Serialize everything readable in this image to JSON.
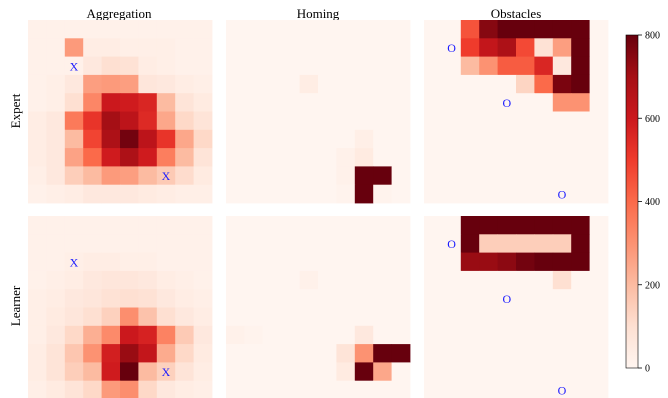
{
  "chart_data": {
    "type": "heatmap",
    "grid_size": 10,
    "columns": [
      "Aggregation",
      "Homing",
      "Obstacles"
    ],
    "rows": [
      "Expert",
      "Learner"
    ],
    "colorbar": {
      "min": 0,
      "max": 800,
      "ticks": [
        0,
        200,
        400,
        600,
        800
      ],
      "colormap": "Reds"
    },
    "marker_color": "#1a1aff",
    "panels": [
      {
        "row": "Expert",
        "column": "Aggregation",
        "values": [
          [
            20,
            20,
            20,
            20,
            20,
            20,
            20,
            20,
            20,
            20
          ],
          [
            20,
            20,
            280,
            40,
            40,
            30,
            30,
            30,
            20,
            20
          ],
          [
            20,
            20,
            20,
            60,
            100,
            90,
            40,
            30,
            20,
            20
          ],
          [
            20,
            30,
            60,
            270,
            280,
            270,
            70,
            60,
            40,
            30
          ],
          [
            20,
            30,
            100,
            330,
            600,
            590,
            560,
            200,
            80,
            50
          ],
          [
            40,
            60,
            360,
            520,
            700,
            640,
            550,
            250,
            120,
            80
          ],
          [
            40,
            60,
            200,
            480,
            680,
            780,
            640,
            520,
            250,
            120
          ],
          [
            40,
            60,
            260,
            400,
            590,
            680,
            590,
            350,
            200,
            80
          ],
          [
            30,
            60,
            150,
            200,
            280,
            270,
            200,
            160,
            110,
            50
          ],
          [
            20,
            30,
            40,
            60,
            60,
            60,
            50,
            40,
            30,
            30
          ]
        ],
        "markers": [
          {
            "label": "X",
            "col": 2,
            "row": 2
          },
          {
            "label": "X",
            "col": 7,
            "row": 8
          }
        ]
      },
      {
        "row": "Expert",
        "column": "Homing",
        "values": [
          [
            0,
            0,
            0,
            0,
            0,
            0,
            0,
            0,
            0,
            0
          ],
          [
            0,
            0,
            0,
            0,
            0,
            0,
            0,
            0,
            0,
            0
          ],
          [
            0,
            0,
            0,
            0,
            0,
            0,
            0,
            0,
            0,
            0
          ],
          [
            0,
            0,
            0,
            0,
            40,
            0,
            0,
            0,
            0,
            0
          ],
          [
            0,
            0,
            0,
            0,
            0,
            0,
            0,
            0,
            0,
            0
          ],
          [
            0,
            0,
            0,
            0,
            0,
            0,
            0,
            0,
            0,
            0
          ],
          [
            0,
            0,
            0,
            0,
            0,
            0,
            0,
            30,
            0,
            0
          ],
          [
            0,
            0,
            0,
            0,
            0,
            0,
            20,
            50,
            0,
            0
          ],
          [
            0,
            0,
            0,
            0,
            0,
            0,
            20,
            850,
            850,
            0
          ],
          [
            0,
            0,
            0,
            0,
            0,
            0,
            10,
            850,
            10,
            0
          ]
        ],
        "markers": []
      },
      {
        "row": "Expert",
        "column": "Obstacles",
        "values": [
          [
            0,
            0,
            450,
            750,
            850,
            850,
            850,
            850,
            850,
            0
          ],
          [
            0,
            0,
            500,
            620,
            680,
            470,
            90,
            270,
            850,
            0
          ],
          [
            0,
            0,
            200,
            300,
            430,
            430,
            560,
            60,
            850,
            0
          ],
          [
            0,
            0,
            0,
            0,
            0,
            130,
            400,
            770,
            850,
            0
          ],
          [
            0,
            0,
            0,
            0,
            0,
            0,
            0,
            300,
            300,
            0
          ],
          [
            0,
            0,
            0,
            0,
            0,
            0,
            0,
            0,
            0,
            0
          ],
          [
            0,
            0,
            0,
            0,
            0,
            0,
            0,
            0,
            0,
            0
          ],
          [
            0,
            0,
            0,
            0,
            0,
            0,
            0,
            0,
            0,
            0
          ],
          [
            0,
            0,
            0,
            0,
            0,
            0,
            0,
            0,
            0,
            0
          ],
          [
            0,
            0,
            0,
            0,
            0,
            0,
            0,
            0,
            0,
            0
          ]
        ],
        "markers": [
          {
            "label": "O",
            "col": 1,
            "row": 1
          },
          {
            "label": "O",
            "col": 4,
            "row": 4
          },
          {
            "label": "O",
            "col": 7,
            "row": 9
          }
        ]
      },
      {
        "row": "Learner",
        "column": "Aggregation",
        "values": [
          [
            20,
            20,
            20,
            20,
            20,
            20,
            20,
            20,
            20,
            20
          ],
          [
            20,
            20,
            20,
            20,
            20,
            20,
            20,
            20,
            20,
            20
          ],
          [
            20,
            20,
            30,
            40,
            40,
            30,
            30,
            20,
            20,
            20
          ],
          [
            20,
            30,
            40,
            60,
            70,
            70,
            60,
            40,
            30,
            20
          ],
          [
            30,
            40,
            60,
            70,
            90,
            100,
            90,
            60,
            40,
            30
          ],
          [
            30,
            50,
            70,
            100,
            140,
            310,
            180,
            100,
            60,
            40
          ],
          [
            30,
            60,
            120,
            230,
            320,
            600,
            570,
            340,
            160,
            60
          ],
          [
            40,
            80,
            170,
            300,
            580,
            720,
            620,
            240,
            120,
            50
          ],
          [
            40,
            80,
            150,
            200,
            590,
            850,
            200,
            140,
            80,
            40
          ],
          [
            30,
            50,
            80,
            120,
            280,
            310,
            120,
            60,
            40,
            30
          ]
        ],
        "markers": [
          {
            "label": "X",
            "col": 2,
            "row": 2
          },
          {
            "label": "X",
            "col": 7,
            "row": 8
          }
        ]
      },
      {
        "row": "Learner",
        "column": "Homing",
        "values": [
          [
            0,
            0,
            0,
            0,
            0,
            0,
            0,
            0,
            0,
            0
          ],
          [
            0,
            0,
            0,
            0,
            0,
            0,
            0,
            0,
            0,
            0
          ],
          [
            0,
            0,
            0,
            0,
            0,
            0,
            0,
            0,
            0,
            0
          ],
          [
            0,
            0,
            0,
            0,
            20,
            0,
            0,
            0,
            0,
            0
          ],
          [
            0,
            0,
            0,
            0,
            0,
            0,
            0,
            0,
            0,
            0
          ],
          [
            0,
            0,
            0,
            0,
            0,
            0,
            0,
            0,
            0,
            0
          ],
          [
            20,
            10,
            0,
            0,
            0,
            0,
            0,
            60,
            0,
            0
          ],
          [
            0,
            0,
            0,
            0,
            0,
            0,
            80,
            300,
            850,
            850
          ],
          [
            0,
            0,
            0,
            0,
            0,
            0,
            50,
            850,
            250,
            0
          ],
          [
            0,
            0,
            0,
            0,
            0,
            0,
            0,
            0,
            0,
            0
          ]
        ],
        "markers": []
      },
      {
        "row": "Learner",
        "column": "Obstacles",
        "values": [
          [
            0,
            0,
            820,
            800,
            800,
            800,
            800,
            800,
            800,
            0
          ],
          [
            0,
            0,
            820,
            150,
            150,
            150,
            150,
            150,
            820,
            0
          ],
          [
            0,
            0,
            720,
            720,
            740,
            780,
            800,
            870,
            850,
            0
          ],
          [
            0,
            0,
            0,
            0,
            0,
            0,
            0,
            100,
            0,
            0
          ],
          [
            0,
            0,
            0,
            0,
            0,
            0,
            0,
            0,
            0,
            0
          ],
          [
            0,
            0,
            0,
            0,
            0,
            0,
            0,
            0,
            0,
            0
          ],
          [
            0,
            0,
            0,
            0,
            0,
            0,
            0,
            0,
            0,
            0
          ],
          [
            0,
            0,
            0,
            0,
            0,
            0,
            0,
            0,
            0,
            0
          ],
          [
            0,
            0,
            0,
            0,
            0,
            0,
            0,
            0,
            0,
            0
          ],
          [
            0,
            0,
            0,
            0,
            0,
            0,
            0,
            0,
            0,
            0
          ]
        ],
        "markers": [
          {
            "label": "O",
            "col": 1,
            "row": 1
          },
          {
            "label": "O",
            "col": 4,
            "row": 4
          },
          {
            "label": "O",
            "col": 7,
            "row": 9
          }
        ]
      }
    ]
  }
}
